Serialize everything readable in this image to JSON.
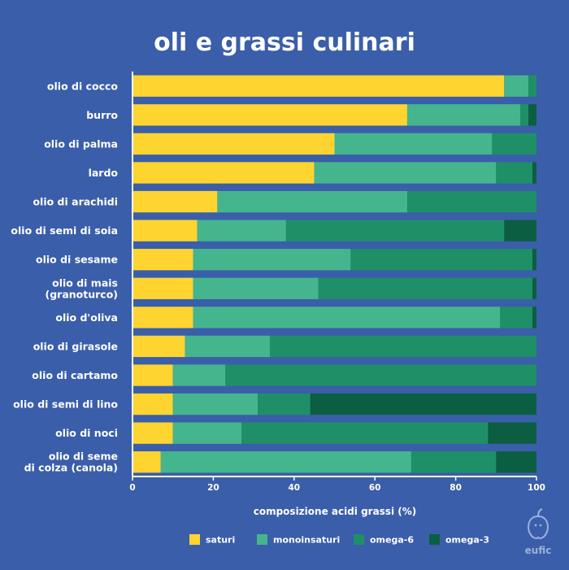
{
  "chart_data": {
    "type": "bar",
    "orientation": "horizontal",
    "stacked": true,
    "title": "oli e grassi culinari",
    "xlabel": "composizione acidi grassi (%)",
    "ylabel": "",
    "xlim": [
      0,
      100
    ],
    "xticks": [
      "0",
      "20",
      "40",
      "60",
      "80",
      "100"
    ],
    "grid": false,
    "legend_position": "bottom",
    "categories": [
      [
        "olio di cocco"
      ],
      [
        "burro"
      ],
      [
        "olio di palma"
      ],
      [
        "lardo"
      ],
      [
        "olio di arachidi"
      ],
      [
        "olio di semi di soia"
      ],
      [
        "olio di sesame"
      ],
      [
        "olio di mais",
        "(granoturco)"
      ],
      [
        "olio d'oliva"
      ],
      [
        "olio di girasole"
      ],
      [
        "olio di cartamo"
      ],
      [
        "olio di semi di lino"
      ],
      [
        "olio di noci"
      ],
      [
        "olio di seme",
        "di colza (canola)"
      ]
    ],
    "series": [
      {
        "name": "saturi",
        "color": "#fdd430",
        "values": [
          92,
          68,
          50,
          45,
          21,
          16,
          15,
          15,
          15,
          13,
          10,
          10,
          10,
          7
        ]
      },
      {
        "name": "monoinsaturi",
        "color": "#45b58e",
        "values": [
          6,
          28,
          39,
          45,
          47,
          22,
          39,
          31,
          76,
          21,
          13,
          21,
          17,
          62
        ]
      },
      {
        "name": "omega-6",
        "color": "#1f8f67",
        "values": [
          2,
          2,
          11,
          9,
          32,
          54,
          45,
          53,
          8,
          66,
          77,
          13,
          61,
          21
        ]
      },
      {
        "name": "omega-3",
        "color": "#0c5e42",
        "values": [
          0,
          2,
          0,
          1,
          0,
          8,
          1,
          1,
          1,
          0,
          0,
          56,
          12,
          10
        ]
      }
    ]
  },
  "brand": {
    "name": "eufic",
    "icon": "apple-logo-icon"
  }
}
